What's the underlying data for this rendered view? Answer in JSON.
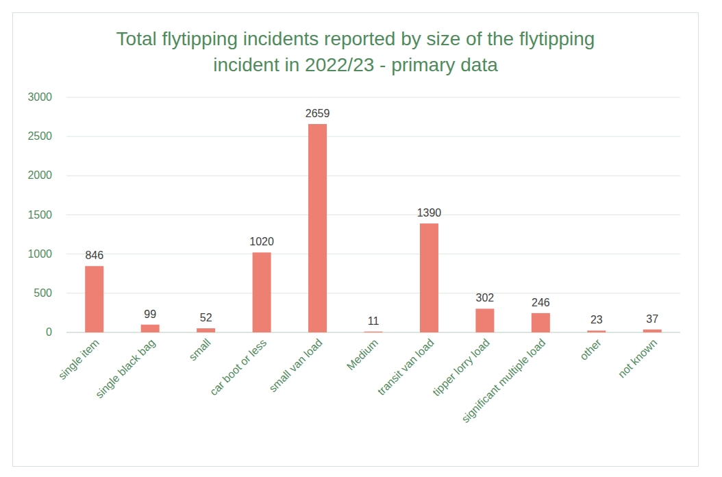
{
  "chart_data": {
    "type": "bar",
    "title": "Total flytipping incidents reported by size of the flytipping incident in 2022/23 - primary data",
    "categories": [
      "single item",
      "single black bag",
      "small",
      "car boot or less",
      "small van load",
      "Medium",
      "transit van load",
      "tipper lorry load",
      "significant multiple load",
      "other",
      "not known"
    ],
    "values": [
      846,
      99,
      52,
      1020,
      2659,
      11,
      1390,
      302,
      246,
      23,
      37
    ],
    "color": "#ee7f73",
    "ylim": [
      0,
      3000
    ],
    "yticks": [
      0,
      500,
      1000,
      1500,
      2000,
      2500,
      3000
    ],
    "grid": true,
    "data_labels": true
  }
}
